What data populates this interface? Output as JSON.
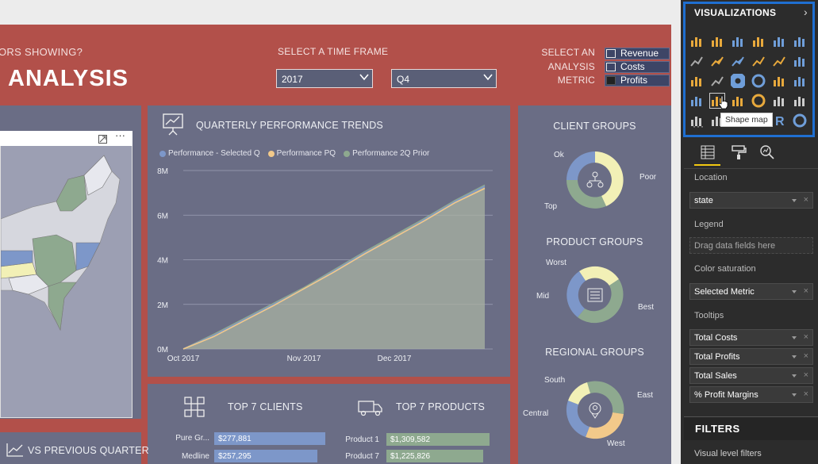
{
  "report": {
    "header_fragment": "ORS SHOWING?",
    "title": "ANALYSIS",
    "time_frame": {
      "label": "SELECT A TIME FRAME",
      "year": "2017",
      "quarter": "Q4"
    },
    "metric": {
      "label_line1": "SELECT AN",
      "label_line2": "ANALYSIS",
      "label_line3": "METRIC",
      "options": [
        "Revenue",
        "Costs",
        "Profits"
      ],
      "selected": "Profits"
    }
  },
  "trend": {
    "title": "QUARTERLY PERFORMANCE TRENDS",
    "legend": [
      "Performance - Selected Q",
      "Performance PQ",
      "Performance 2Q Prior"
    ],
    "colors": [
      "#7d97c9",
      "#f2c98a",
      "#8ea98f"
    ]
  },
  "chart_data": {
    "type": "area",
    "series": [
      {
        "name": "Performance - Selected Q",
        "values": [
          0,
          0.6,
          1.3,
          2.0,
          2.7,
          3.5,
          4.3,
          5.0,
          5.8,
          6.6,
          7.3
        ]
      },
      {
        "name": "Performance PQ",
        "values": [
          0,
          0.55,
          1.25,
          1.95,
          2.7,
          3.45,
          4.25,
          5.0,
          5.75,
          6.55,
          7.2
        ]
      },
      {
        "name": "Performance 2Q Prior",
        "values": [
          0,
          0.65,
          1.35,
          2.05,
          2.75,
          3.55,
          4.35,
          5.1,
          5.85,
          6.65,
          7.35
        ]
      }
    ],
    "x": [
      "Oct 2017",
      "",
      "",
      "",
      "Nov 2017",
      "",
      "",
      "Dec 2017",
      "",
      "",
      ""
    ],
    "x_ticks": [
      "Oct 2017",
      "Nov 2017",
      "Dec 2017"
    ],
    "y_ticks": [
      "0M",
      "2M",
      "4M",
      "6M",
      "8M"
    ],
    "ylim": [
      0,
      8
    ],
    "grid": true,
    "legend_position": "top-left"
  },
  "map": {
    "focus_icon": "focus-mode-icon",
    "more": "···"
  },
  "vs_previous": {
    "title": "VS PREVIOUS QUARTER"
  },
  "top_clients": {
    "title": "TOP 7 CLIENTS",
    "rows": [
      {
        "label": "Pure Gr...",
        "value": "$277,881",
        "fraction": 1.0
      },
      {
        "label": "Medline",
        "value": "$257,295",
        "fraction": 0.93
      }
    ]
  },
  "top_products": {
    "title": "TOP 7 PRODUCTS",
    "rows": [
      {
        "label": "Product 1",
        "value": "$1,309,582",
        "fraction": 1.0
      },
      {
        "label": "Product 7",
        "value": "$1,225,826",
        "fraction": 0.94
      }
    ]
  },
  "groups": {
    "client": {
      "title": "CLIENT GROUPS",
      "labels": [
        "Ok",
        "Poor",
        "Top"
      ]
    },
    "product": {
      "title": "PRODUCT GROUPS",
      "labels": [
        "Worst",
        "Best",
        "Mid"
      ]
    },
    "regional": {
      "title": "REGIONAL GROUPS",
      "labels": [
        "South",
        "East",
        "Central",
        "West"
      ]
    }
  },
  "pane": {
    "viz_title": "VISUALIZATIONS",
    "tooltip": "Shape map",
    "more": "···",
    "wells": {
      "location_label": "Location",
      "location_value": "state",
      "legend_label": "Legend",
      "legend_placeholder": "Drag data fields here",
      "color_label": "Color saturation",
      "color_value": "Selected Metric",
      "tooltips_label": "Tooltips",
      "tooltips": [
        "Total Costs",
        "Total Profits",
        "Total Sales",
        "% Profit Margins"
      ]
    },
    "filters_title": "FILTERS",
    "filters_sub": "Visual level filters"
  },
  "colors": {
    "report_bg": "#b2504a",
    "panel_bg": "#6a6d85",
    "blue": "#7d97c9",
    "yellow": "#f2f0b6",
    "green": "#8ea98f",
    "pane_bg": "#2c2c2c",
    "highlight": "#1f6fd1"
  }
}
